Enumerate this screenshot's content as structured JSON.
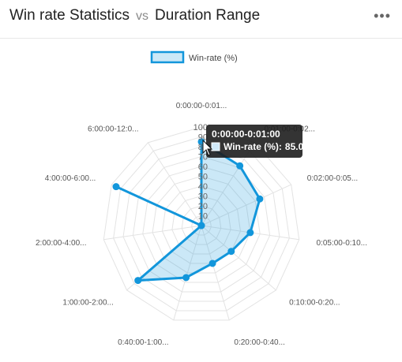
{
  "header": {
    "title_left": "Win rate Statistics",
    "vs": "vs",
    "title_right": "Duration Range",
    "menu_icon": "ellipsis-icon"
  },
  "chart_data": {
    "type": "radar",
    "categories": [
      "0:00:00-0:01...",
      "0:01:00-0:02...",
      "0:02:00-0:05...",
      "0:05:00-0:10...",
      "0:10:00-0:20...",
      "0:20:00-0:40...",
      "0:40:00-1:00...",
      "1:00:00-2:00...",
      "2:00:00-4:00...",
      "4:00:00-6:00...",
      "6:00:00-12:0..."
    ],
    "series": [
      {
        "name": "Win-rate (%)",
        "values": [
          85,
          72,
          65,
          50,
          40,
          40,
          55,
          85,
          0,
          95,
          0
        ],
        "color": "#1296db",
        "fill": "rgba(18,150,219,0.22)"
      }
    ],
    "rlim": [
      0,
      100
    ],
    "ticks": [
      10,
      20,
      30,
      40,
      50,
      60,
      70,
      80,
      90,
      100
    ],
    "legend_position": "top",
    "grid": true
  },
  "tooltip": {
    "title": "0:00:00-0:01:00",
    "series_label": "Win-rate (%):",
    "value": "85.00"
  }
}
